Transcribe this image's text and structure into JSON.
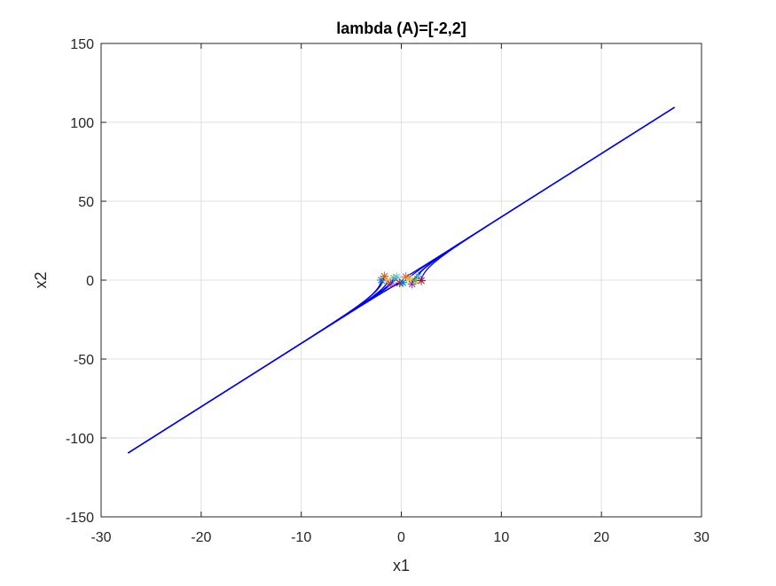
{
  "chart_data": {
    "type": "line",
    "title": "lambda (A)=[-2,2]",
    "xlabel": "x1",
    "ylabel": "x2",
    "xlim": [
      -30,
      30
    ],
    "ylim": [
      -150,
      150
    ],
    "xticks": [
      -30,
      -20,
      -10,
      0,
      10,
      20,
      30
    ],
    "yticks": [
      -150,
      -100,
      -50,
      0,
      50,
      100,
      150
    ],
    "xtick_labels": [
      "-30",
      "-20",
      "-10",
      "0",
      "10",
      "20",
      "30"
    ],
    "ytick_labels": [
      "-150",
      "-100",
      "-50",
      "0",
      "50",
      "100",
      "150"
    ],
    "grid": true,
    "series": [
      {
        "color": "#0000ff",
        "description_type": "trajectory bundle",
        "endpoint_low": [
          -27.3,
          -109.5
        ],
        "endpoint_high": [
          27.3,
          109.5
        ]
      }
    ],
    "start_markers": {
      "marker": "asterisk",
      "x_range": [
        -2,
        2
      ],
      "y_range": [
        -3,
        3
      ],
      "colors": [
        "#0072bd",
        "#d95319",
        "#edb120",
        "#7e2f8e",
        "#77ac30",
        "#4dbeee",
        "#a2142f"
      ]
    }
  }
}
